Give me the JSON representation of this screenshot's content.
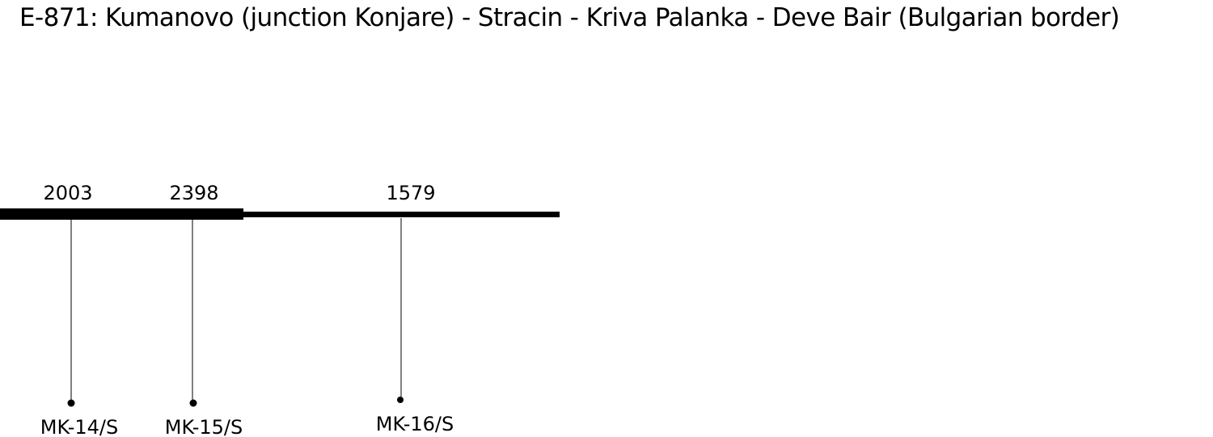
{
  "title": "E-871: Kumanovo (junction Konjare) - Stracin - Kriva Palanka - Deve Bair (Bulgarian border)",
  "colors": {
    "line": "#000000",
    "background": "#ffffff"
  },
  "stations": [
    {
      "count": "2003",
      "id": "MK-14/S"
    },
    {
      "count": "2398",
      "id": "MK-15/S"
    },
    {
      "count": "1579",
      "id": "MK-16/S"
    }
  ]
}
